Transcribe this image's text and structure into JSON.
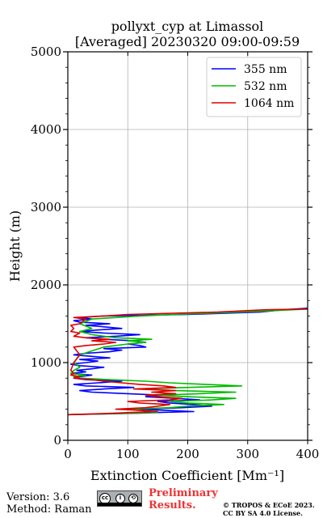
{
  "chart_data": {
    "type": "line",
    "title": "pollyxt_cyp at Limassol",
    "subtitle": "[Averaged] 20230320 09:00-09:59",
    "xlabel": "Extinction Coefficient [Mm⁻¹]",
    "ylabel": "Height (m)",
    "xlim": [
      0,
      400
    ],
    "ylim": [
      0,
      5000
    ],
    "x_ticks": [
      0,
      100,
      200,
      300,
      400
    ],
    "y_ticks": [
      0,
      1000,
      2000,
      3000,
      4000,
      5000
    ],
    "grid": true,
    "legend_position": "top-right",
    "series": [
      {
        "name": "355 nm",
        "color": "#0000ff",
        "points": [
          [
            0,
            330
          ],
          [
            60,
            340
          ],
          [
            120,
            350
          ],
          [
            160,
            360
          ],
          [
            210,
            370
          ],
          [
            150,
            390
          ],
          [
            120,
            400
          ],
          [
            190,
            420
          ],
          [
            240,
            440
          ],
          [
            210,
            460
          ],
          [
            170,
            480
          ],
          [
            150,
            500
          ],
          [
            220,
            520
          ],
          [
            180,
            540
          ],
          [
            130,
            560
          ],
          [
            160,
            580
          ],
          [
            100,
            600
          ],
          [
            40,
            620
          ],
          [
            20,
            640
          ],
          [
            60,
            660
          ],
          [
            110,
            680
          ],
          [
            30,
            700
          ],
          [
            10,
            720
          ],
          [
            50,
            740
          ],
          [
            90,
            760
          ],
          [
            30,
            780
          ],
          [
            10,
            800
          ],
          [
            20,
            820
          ],
          [
            40,
            840
          ],
          [
            5,
            860
          ],
          [
            30,
            880
          ],
          [
            15,
            900
          ],
          [
            40,
            920
          ],
          [
            60,
            940
          ],
          [
            20,
            960
          ],
          [
            5,
            980
          ],
          [
            30,
            1000
          ],
          [
            50,
            1020
          ],
          [
            20,
            1040
          ],
          [
            70,
            1060
          ],
          [
            40,
            1080
          ],
          [
            10,
            1100
          ],
          [
            30,
            1120
          ],
          [
            70,
            1140
          ],
          [
            90,
            1160
          ],
          [
            60,
            1180
          ],
          [
            130,
            1200
          ],
          [
            120,
            1220
          ],
          [
            100,
            1240
          ],
          [
            130,
            1260
          ],
          [
            110,
            1280
          ],
          [
            60,
            1300
          ],
          [
            30,
            1320
          ],
          [
            80,
            1340
          ],
          [
            120,
            1360
          ],
          [
            60,
            1380
          ],
          [
            20,
            1400
          ],
          [
            50,
            1420
          ],
          [
            90,
            1440
          ],
          [
            60,
            1460
          ],
          [
            30,
            1480
          ],
          [
            70,
            1500
          ],
          [
            20,
            1520
          ],
          [
            10,
            1540
          ],
          [
            40,
            1560
          ],
          [
            20,
            1580
          ],
          [
            60,
            1600
          ],
          [
            200,
            1620
          ],
          [
            320,
            1650
          ],
          [
            360,
            1680
          ],
          [
            400,
            1700
          ]
        ]
      },
      {
        "name": "532 nm",
        "color": "#00bb00",
        "points": [
          [
            0,
            330
          ],
          [
            50,
            340
          ],
          [
            110,
            350
          ],
          [
            150,
            360
          ],
          [
            130,
            380
          ],
          [
            100,
            400
          ],
          [
            170,
            420
          ],
          [
            200,
            440
          ],
          [
            260,
            460
          ],
          [
            200,
            480
          ],
          [
            170,
            500
          ],
          [
            240,
            520
          ],
          [
            280,
            540
          ],
          [
            200,
            560
          ],
          [
            150,
            580
          ],
          [
            220,
            600
          ],
          [
            280,
            620
          ],
          [
            180,
            640
          ],
          [
            120,
            660
          ],
          [
            200,
            680
          ],
          [
            290,
            700
          ],
          [
            230,
            720
          ],
          [
            170,
            740
          ],
          [
            130,
            760
          ],
          [
            70,
            780
          ],
          [
            20,
            800
          ],
          [
            10,
            820
          ],
          [
            30,
            840
          ],
          [
            5,
            860
          ],
          [
            10,
            900
          ],
          [
            20,
            940
          ],
          [
            10,
            1000
          ],
          [
            20,
            1100
          ],
          [
            60,
            1200
          ],
          [
            100,
            1240
          ],
          [
            130,
            1260
          ],
          [
            100,
            1280
          ],
          [
            140,
            1300
          ],
          [
            80,
            1320
          ],
          [
            40,
            1360
          ],
          [
            20,
            1400
          ],
          [
            40,
            1440
          ],
          [
            20,
            1500
          ],
          [
            40,
            1560
          ],
          [
            120,
            1600
          ],
          [
            180,
            1620
          ],
          [
            320,
            1660
          ],
          [
            400,
            1690
          ]
        ]
      },
      {
        "name": "1064 nm",
        "color": "#dd0000",
        "points": [
          [
            0,
            330
          ],
          [
            40,
            340
          ],
          [
            80,
            350
          ],
          [
            110,
            360
          ],
          [
            150,
            370
          ],
          [
            110,
            390
          ],
          [
            80,
            400
          ],
          [
            130,
            420
          ],
          [
            150,
            440
          ],
          [
            170,
            460
          ],
          [
            120,
            480
          ],
          [
            100,
            500
          ],
          [
            170,
            520
          ],
          [
            190,
            540
          ],
          [
            150,
            560
          ],
          [
            130,
            580
          ],
          [
            180,
            600
          ],
          [
            140,
            620
          ],
          [
            180,
            640
          ],
          [
            110,
            660
          ],
          [
            180,
            680
          ],
          [
            160,
            700
          ],
          [
            120,
            720
          ],
          [
            90,
            740
          ],
          [
            60,
            760
          ],
          [
            40,
            780
          ],
          [
            10,
            800
          ],
          [
            20,
            820
          ],
          [
            5,
            840
          ],
          [
            10,
            860
          ],
          [
            5,
            900
          ],
          [
            10,
            1000
          ],
          [
            20,
            1100
          ],
          [
            10,
            1200
          ],
          [
            30,
            1220
          ],
          [
            60,
            1240
          ],
          [
            80,
            1260
          ],
          [
            40,
            1280
          ],
          [
            70,
            1300
          ],
          [
            30,
            1320
          ],
          [
            10,
            1340
          ],
          [
            20,
            1380
          ],
          [
            5,
            1400
          ],
          [
            10,
            1440
          ],
          [
            5,
            1480
          ],
          [
            20,
            1500
          ],
          [
            30,
            1560
          ],
          [
            10,
            1580
          ],
          [
            60,
            1600
          ],
          [
            100,
            1620
          ],
          [
            250,
            1650
          ],
          [
            330,
            1680
          ],
          [
            400,
            1690
          ]
        ]
      }
    ]
  },
  "footer": {
    "version": "Version: 3.6",
    "method": "Method: Raman",
    "preliminary_line1": "Preliminary",
    "preliminary_line2": "Results.",
    "copyright_line1": "© TROPOS & ECoE 2023.",
    "copyright_line2": "CC BY SA 4.0 License."
  }
}
